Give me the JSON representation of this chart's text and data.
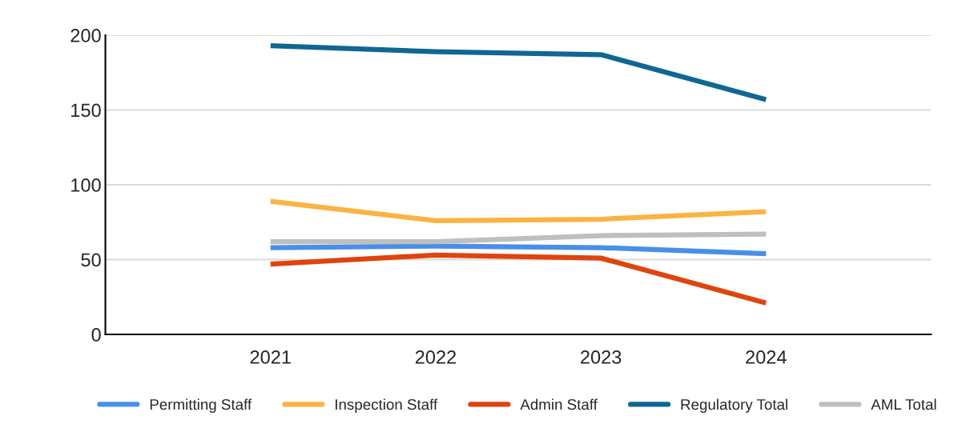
{
  "chart_data": {
    "type": "line",
    "categories": [
      "2021",
      "2022",
      "2023",
      "2024"
    ],
    "series": [
      {
        "name": "Permitting Staff",
        "color": "#4a8fe7",
        "values": [
          58,
          59,
          58,
          54
        ]
      },
      {
        "name": "Inspection Staff",
        "color": "#fbb344",
        "values": [
          89,
          76,
          77,
          82
        ]
      },
      {
        "name": "Admin Staff",
        "color": "#e0440e",
        "values": [
          47,
          53,
          51,
          21
        ]
      },
      {
        "name": "Regulatory Total",
        "color": "#0f6792",
        "values": [
          193,
          189,
          187,
          157
        ]
      },
      {
        "name": "AML Total",
        "color": "#bfbfbf",
        "values": [
          62,
          62,
          66,
          67
        ]
      }
    ],
    "ylim": [
      0,
      200
    ],
    "yticks": [
      0,
      50,
      100,
      150,
      200
    ],
    "grid": "y",
    "legend": "bottom",
    "marker": "none",
    "line_style": "solid"
  }
}
